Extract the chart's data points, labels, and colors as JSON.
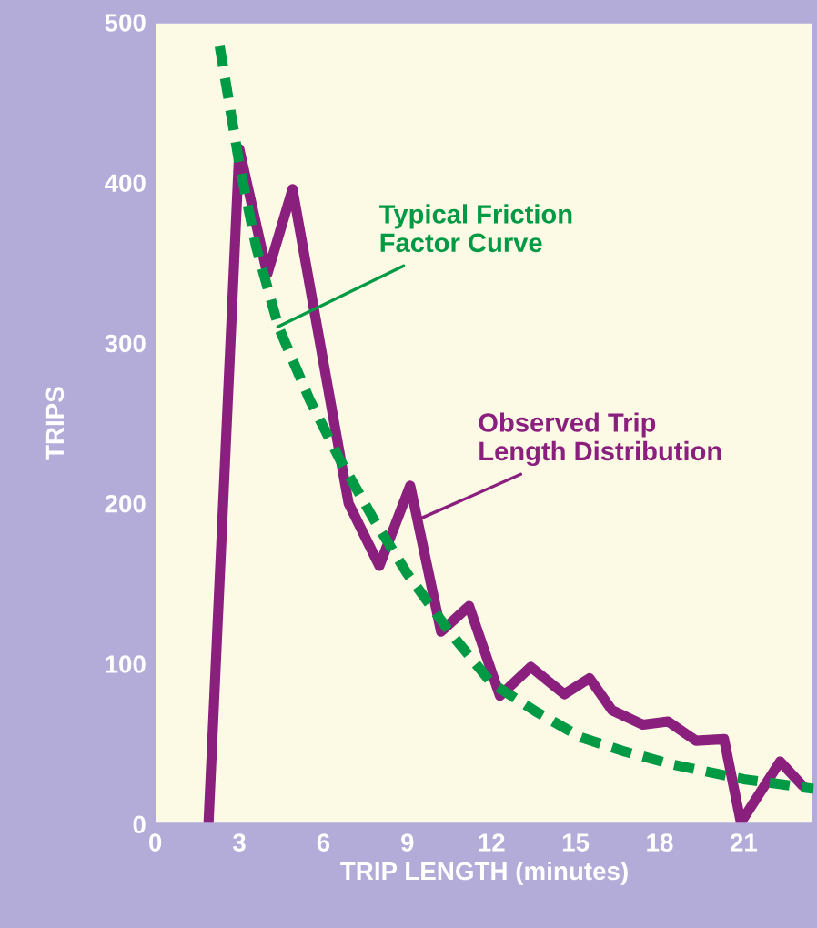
{
  "chart_data": {
    "type": "line",
    "xlabel": "TRIP LENGTH (minutes)",
    "ylabel": "TRIPS",
    "xlim": [
      0,
      23.5
    ],
    "xticks": [
      0,
      3,
      6,
      9,
      12,
      15,
      18,
      21
    ],
    "ylim": [
      0,
      500
    ],
    "yticks": [
      0,
      100,
      200,
      300,
      400,
      500
    ],
    "grid": false,
    "legend": false,
    "series": [
      {
        "name": "Typical Friction\nFactor Curve",
        "color": "#009944",
        "line_style": "dashed",
        "x": [
          2.3,
          3,
          3.6,
          4.4,
          5.5,
          6.6,
          7.8,
          9,
          10.5,
          12,
          13.6,
          15.2,
          16.8,
          18.5,
          21,
          23.5
        ],
        "values": [
          485,
          412,
          360,
          310,
          265,
          227,
          190,
          156,
          120,
          88,
          70,
          54,
          45,
          37,
          28,
          22
        ]
      },
      {
        "name": "Observed Trip\nLength Distribution",
        "color": "#8a1f7d",
        "line_style": "solid",
        "x": [
          1.9,
          3,
          4,
          4.9,
          6.9,
          8,
          9.1,
          10.2,
          11.2,
          12.3,
          13.4,
          14.6,
          15.5,
          16.3,
          17.4,
          18.3,
          19.3,
          20.3,
          20.9,
          22.3,
          23.1
        ],
        "values": [
          0,
          421,
          343,
          396,
          200,
          161,
          211,
          120,
          136,
          80,
          98,
          81,
          91,
          71,
          62,
          64,
          52,
          53,
          1,
          39,
          24
        ]
      }
    ]
  }
}
